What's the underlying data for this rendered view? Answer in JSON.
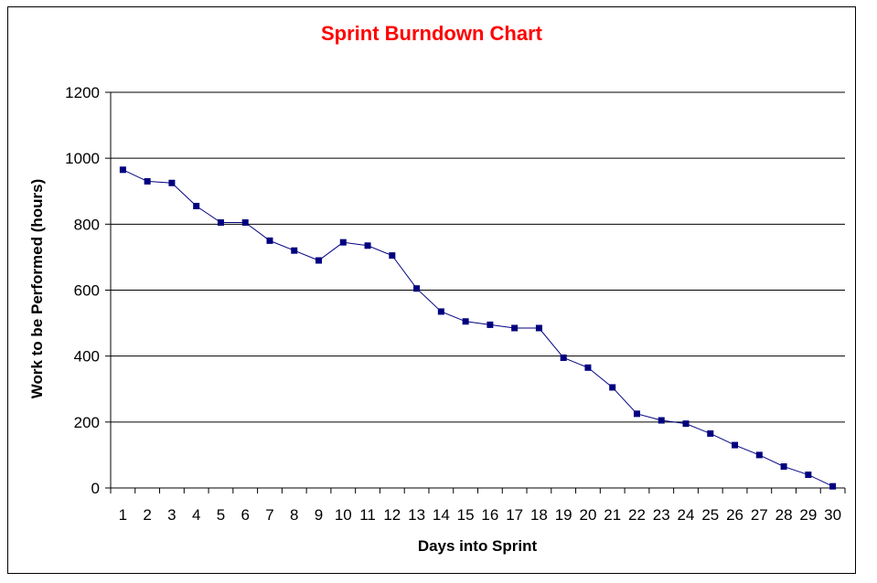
{
  "chart_data": {
    "type": "line",
    "title": "Sprint Burndown Chart",
    "xlabel": "Days into Sprint",
    "ylabel": "Work to be Performed (hours)",
    "ylim": [
      0,
      1200
    ],
    "yticks": [
      0,
      200,
      400,
      600,
      800,
      1000,
      1200
    ],
    "categories": [
      "1",
      "2",
      "3",
      "4",
      "5",
      "6",
      "7",
      "8",
      "9",
      "10",
      "11",
      "12",
      "13",
      "14",
      "15",
      "16",
      "17",
      "18",
      "19",
      "20",
      "21",
      "22",
      "23",
      "24",
      "25",
      "26",
      "27",
      "28",
      "29",
      "30"
    ],
    "series": [
      {
        "values": [
          965,
          930,
          925,
          855,
          805,
          805,
          750,
          720,
          690,
          745,
          735,
          705,
          605,
          535,
          505,
          495,
          485,
          485,
          395,
          365,
          305,
          225,
          205,
          195,
          165,
          130,
          100,
          65,
          40,
          5
        ]
      }
    ],
    "grid": "horizontal",
    "colors": {
      "title": "#ff0000",
      "line": "#00007f",
      "marker": "#00007f",
      "grid": "#000000"
    },
    "marker": "square"
  }
}
